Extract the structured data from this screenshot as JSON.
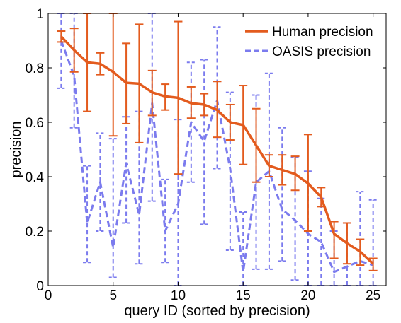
{
  "chart_data": {
    "type": "line",
    "xlabel": "query ID (sorted by precision)",
    "ylabel": "precision",
    "xlim": [
      0,
      26
    ],
    "ylim": [
      0,
      1
    ],
    "xticks": [
      0,
      5,
      10,
      15,
      20,
      25
    ],
    "yticks": [
      0,
      0.2,
      0.4,
      0.6,
      0.8,
      1
    ],
    "xtick_labels": [
      "0",
      "5",
      "10",
      "15",
      "20",
      "25"
    ],
    "ytick_labels": [
      "0",
      "0.2",
      "0.4",
      "0.6",
      "0.8",
      "1"
    ],
    "grid": false,
    "legend_position": "top-right",
    "x": [
      1,
      2,
      3,
      4,
      5,
      6,
      7,
      8,
      9,
      10,
      11,
      12,
      13,
      14,
      15,
      16,
      17,
      18,
      19,
      20,
      21,
      22,
      23,
      24,
      25
    ],
    "series": [
      {
        "name": "Human precision",
        "color": "#e35b1e",
        "style": "solid",
        "values": [
          0.915,
          0.865,
          0.82,
          0.815,
          0.785,
          0.745,
          0.742,
          0.71,
          0.695,
          0.69,
          0.67,
          0.665,
          0.645,
          0.6,
          0.59,
          0.515,
          0.44,
          0.425,
          0.41,
          0.375,
          0.325,
          0.19,
          0.155,
          0.125,
          0.08
        ],
        "err_low": [
          0.895,
          0.785,
          0.64,
          0.775,
          0.55,
          0.595,
          0.525,
          0.625,
          0.645,
          0.41,
          0.615,
          0.625,
          0.545,
          0.535,
          0.445,
          0.38,
          0.4,
          0.37,
          0.35,
          0.2,
          0.29,
          0.1,
          0.08,
          0.075,
          0.055
        ],
        "err_high": [
          0.935,
          0.945,
          1.0,
          0.855,
          1.0,
          0.89,
          0.96,
          0.79,
          0.74,
          0.97,
          0.73,
          0.705,
          0.75,
          0.665,
          0.735,
          0.65,
          0.48,
          0.48,
          0.475,
          0.555,
          0.36,
          0.235,
          0.23,
          0.17,
          0.1
        ]
      },
      {
        "name": "OASIS precision",
        "color": "#7b7bee",
        "style": "dashed",
        "values": [
          0.9,
          0.77,
          0.23,
          0.38,
          0.14,
          0.45,
          0.26,
          0.67,
          0.2,
          0.3,
          0.6,
          0.53,
          0.68,
          0.43,
          0.05,
          0.38,
          0.42,
          0.28,
          0.24,
          0.19,
          0.16,
          0.05,
          0.07,
          0.09,
          0.075
        ],
        "err_low": [
          0.725,
          0.58,
          0.085,
          0.2,
          0.03,
          0.23,
          0.08,
          0.31,
          0.085,
          0.0,
          0.38,
          0.225,
          0.43,
          0.13,
          0.0,
          0.06,
          0.06,
          0.09,
          0.02,
          0.0,
          0.0,
          0.0,
          0.0,
          0.0,
          0.0
        ],
        "err_high": [
          1.0,
          1.0,
          0.44,
          0.56,
          0.54,
          0.62,
          0.64,
          1.0,
          0.39,
          0.61,
          0.82,
          0.83,
          0.95,
          0.71,
          0.27,
          0.7,
          0.78,
          0.58,
          0.47,
          0.42,
          0.32,
          0.2,
          0.23,
          0.345,
          0.315
        ]
      }
    ]
  }
}
